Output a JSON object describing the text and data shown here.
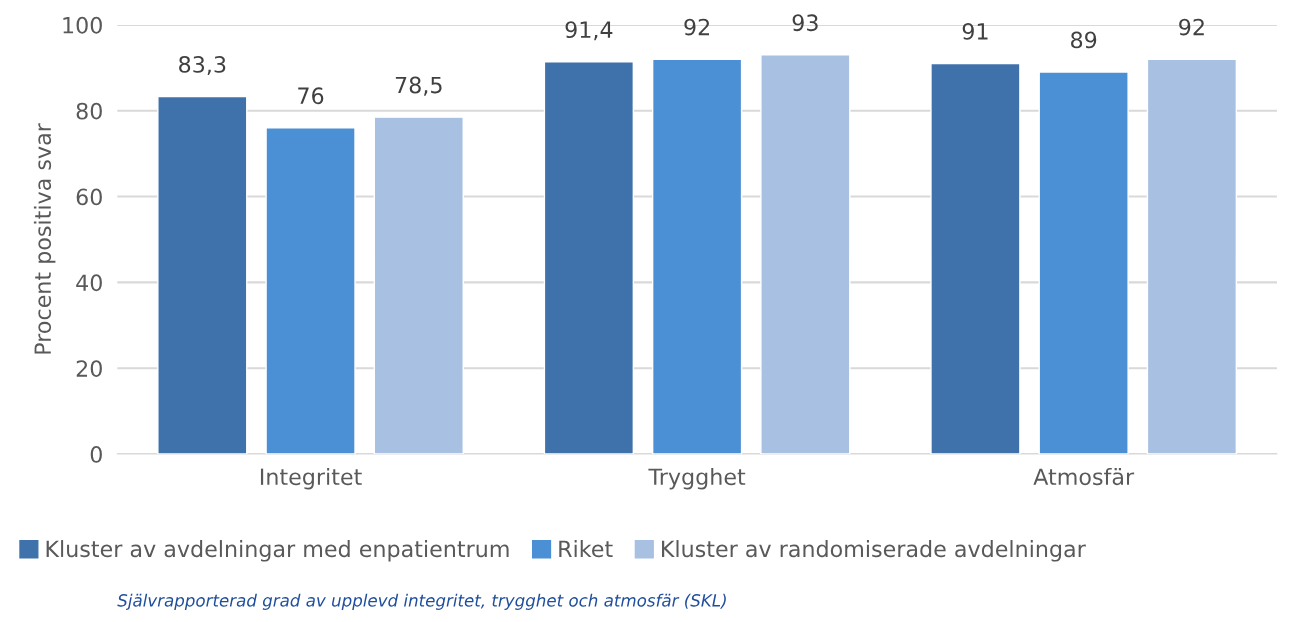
{
  "chart_data": {
    "type": "bar",
    "ylabel": "Procent positiva svar",
    "categories": [
      "Integritet",
      "Trygghet",
      "Atmosfär"
    ],
    "series": [
      {
        "name": "Kluster av avdelningar med enpatientrum",
        "color": "#3f72ab",
        "values": [
          83.3,
          91.4,
          91
        ],
        "value_labels": [
          "83,3",
          "91,4",
          "91"
        ]
      },
      {
        "name": "Riket",
        "color": "#4b8fd4",
        "values": [
          76,
          92,
          89
        ],
        "value_labels": [
          "76",
          "92",
          "89"
        ]
      },
      {
        "name": "Kluster av randomiserade avdelningar",
        "color": "#a8c0e2",
        "values": [
          78.5,
          93,
          92
        ],
        "value_labels": [
          "78,5",
          "93",
          "92"
        ]
      }
    ],
    "ylim": [
      0,
      100
    ],
    "yticks": [
      0,
      20,
      40,
      60,
      80,
      100
    ],
    "grid": "y",
    "legend": "bottom",
    "annotations": [
      "Självrapporterad grad av upplevd integritet, trygghet och atmosfär (SKL)"
    ]
  }
}
